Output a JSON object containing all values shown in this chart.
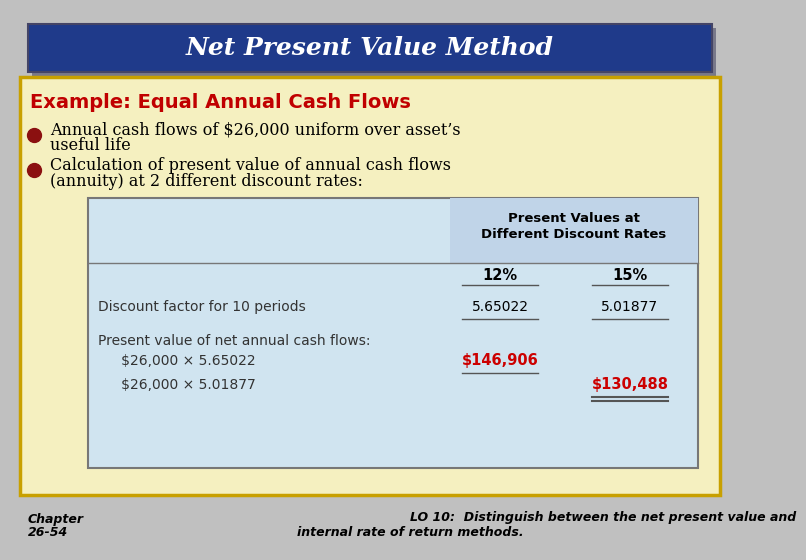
{
  "title": "Net Present Value Method",
  "title_bg": "#1F3A8A",
  "title_color": "#FFFFFF",
  "outer_bg": "#C0C0C0",
  "slide_bg": "#F5F0C0",
  "slide_border": "#C8A000",
  "section_title": "Example: Equal Annual Cash Flows",
  "section_title_color": "#C00000",
  "bullet1_line1": "Annual cash flows of $26,000 uniform over asset’s",
  "bullet1_line2": "useful life",
  "bullet2_line1": "Calculation of present value of annual cash flows",
  "bullet2_line2": "(annuity) at 2 different discount rates:",
  "bullet_color": "#8B1010",
  "body_text_color": "#000000",
  "table_bg": "#D0E4F0",
  "table_border": "#888888",
  "table_header1": "Present Values at",
  "table_header2": "Different Discount Rates",
  "col1_header": "12%",
  "col2_header": "15%",
  "row1_label": "Discount factor for 10 periods",
  "row1_val1": "5.65022",
  "row1_val2": "5.01877",
  "row2_label": "Present value of net annual cash flows:",
  "row3_label": "   $26,000 × 5.65022",
  "row3_val1": "$146,906",
  "row3_val1_color": "#CC0000",
  "row4_label": "   $26,000 × 5.01877",
  "row4_val2": "$130,488",
  "row4_val2_color": "#CC0000",
  "footer_left_line1": "Chapter",
  "footer_left_line2": "26-54",
  "footer_right_line1": "LO 10:  Distinguish between the net present value and",
  "footer_right_line2": "internal rate of return methods."
}
